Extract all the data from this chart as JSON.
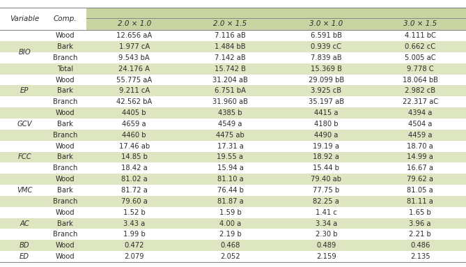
{
  "col_headers_top": [
    "Variable",
    "Comp.",
    "2.0 × 1.0",
    "2.0 × 1.5",
    "3.0 × 1.0",
    "3.0 × 1.5"
  ],
  "rows": [
    [
      "BIO",
      "Wood",
      "12.656 aA",
      "7.116 aB",
      "6.591 bB",
      "4.111 bC"
    ],
    [
      "BIO",
      "Bark",
      "1.977 cA",
      "1.484 bB",
      "0.939 cC",
      "0.662 cC"
    ],
    [
      "BIO",
      "Branch",
      "9.543 bA",
      "7.142 aB",
      "7.839 aB",
      "5.005 aC"
    ],
    [
      "BIO",
      "Total",
      "24.176 A",
      "15.742 B",
      "15.369 B",
      "9.778 C"
    ],
    [
      "EP",
      "Wood",
      "55.775 aA",
      "31.204 aB",
      "29.099 bB",
      "18.064 bB"
    ],
    [
      "EP",
      "Bark",
      "9.211 cA",
      "6.751 bA",
      "3.925 cB",
      "2.982 cB"
    ],
    [
      "EP",
      "Branch",
      "42.562 bA",
      "31.960 aB",
      "35.197 aB",
      "22.317 aC"
    ],
    [
      "GCV",
      "Wood",
      "4405 b",
      "4385 b",
      "4415 a",
      "4394 a"
    ],
    [
      "GCV",
      "Bark",
      "4659 a",
      "4549 a",
      "4180 b",
      "4504 a"
    ],
    [
      "GCV",
      "Branch",
      "4460 b",
      "4475 ab",
      "4490 a",
      "4459 a"
    ],
    [
      "FCC",
      "Wood",
      "17.46 ab",
      "17.31 a",
      "19.19 a",
      "18.70 a"
    ],
    [
      "FCC",
      "Bark",
      "14.85 b",
      "19.55 a",
      "18.92 a",
      "14.99 a"
    ],
    [
      "FCC",
      "Branch",
      "18.42 a",
      "15.94 a",
      "15.44 b",
      "16.67 a"
    ],
    [
      "VMC",
      "Wood",
      "81.02 a",
      "81.10 a",
      "79.40 ab",
      "79.62 a"
    ],
    [
      "VMC",
      "Bark",
      "81.72 a",
      "76.44 b",
      "77.75 b",
      "81.05 a"
    ],
    [
      "VMC",
      "Branch",
      "79.60 a",
      "81.87 a",
      "82.25 a",
      "81.11 a"
    ],
    [
      "AC",
      "Wood",
      "1.52 b",
      "1.59 b",
      "1.41 c",
      "1.65 b"
    ],
    [
      "AC",
      "Bark",
      "3.43 a",
      "4.00 a",
      "3.34 a",
      "3.96 a"
    ],
    [
      "AC",
      "Branch",
      "1.99 b",
      "2.19 b",
      "2.30 b",
      "2.21 b"
    ],
    [
      "BD",
      "Wood",
      "0.472",
      "0.468",
      "0.489",
      "0.486"
    ],
    [
      "ED",
      "Wood",
      "2.079",
      "2.052",
      "2.159",
      "2.135"
    ]
  ],
  "shaded_rows": [
    1,
    3,
    5,
    7,
    9,
    11,
    13,
    15,
    17,
    19
  ],
  "shade_color": "#dde6c0",
  "header_shade": "#c8d4a2",
  "bg_color": "#ffffff",
  "text_color": "#2c2c2c",
  "font_size": 7.2,
  "header_font_size": 7.5,
  "line_color": "#888888"
}
